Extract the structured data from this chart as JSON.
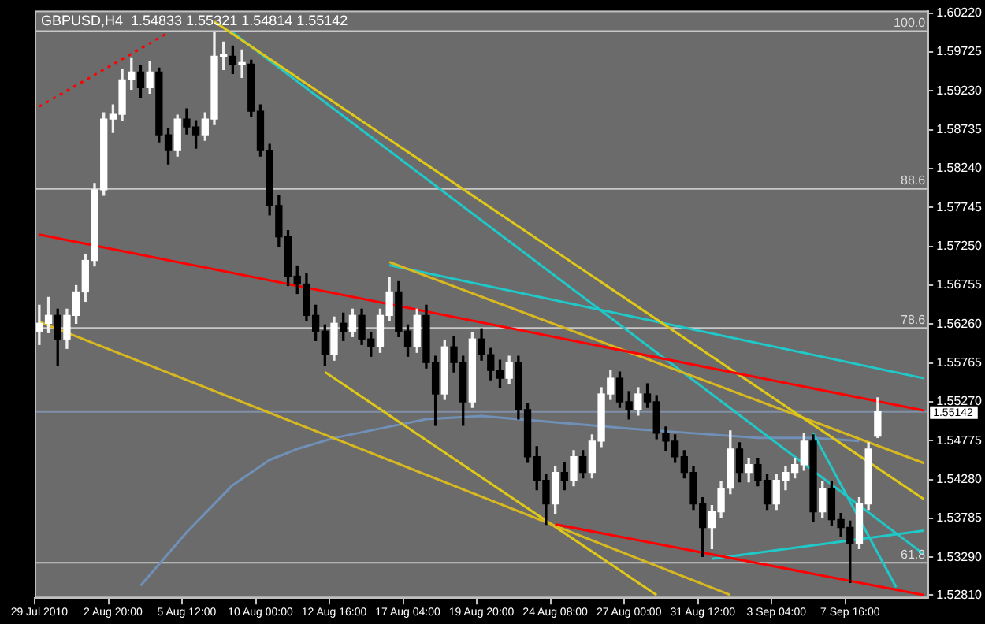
{
  "chart_data": {
    "type": "candlestick",
    "title": "GBPUSD,H4  1.54833 1.55321 1.54814 1.55142",
    "categories": [
      "29 Jul 2010",
      null,
      null,
      null,
      null,
      null,
      null,
      null,
      "2 Aug 20:00",
      null,
      null,
      null,
      null,
      null,
      null,
      null,
      "5 Aug 12:00",
      null,
      null,
      null,
      null,
      null,
      null,
      null,
      "10 Aug 00:00",
      null,
      null,
      null,
      null,
      null,
      null,
      null,
      "12 Aug 16:00",
      null,
      null,
      null,
      null,
      null,
      null,
      null,
      "17 Aug 04:00",
      null,
      null,
      null,
      null,
      null,
      null,
      null,
      "19 Aug 20:00",
      null,
      null,
      null,
      null,
      null,
      null,
      null,
      "24 Aug 08:00",
      null,
      null,
      null,
      null,
      null,
      null,
      null,
      "27 Aug 00:00",
      null,
      null,
      null,
      null,
      null,
      null,
      null,
      "31 Aug 12:00",
      null,
      null,
      null,
      null,
      null,
      null,
      null,
      "3 Sep 04:00",
      null,
      null,
      null,
      null,
      null,
      null,
      null,
      "7 Sep 16:00",
      null,
      null,
      null,
      null,
      null,
      null,
      null,
      null
    ],
    "ohlc": [
      [
        1.5617,
        1.565,
        1.56,
        1.5627
      ],
      [
        1.5627,
        1.566,
        1.5615,
        1.5637
      ],
      [
        1.5637,
        1.5645,
        1.5573,
        1.5607
      ],
      [
        1.5607,
        1.5645,
        1.5595,
        1.5637
      ],
      [
        1.5637,
        1.5675,
        1.5627,
        1.5667
      ],
      [
        1.5667,
        1.5715,
        1.5655,
        1.5707
      ],
      [
        1.5707,
        1.5805,
        1.57,
        1.5797
      ],
      [
        1.5797,
        1.5895,
        1.579,
        1.5887
      ],
      [
        1.5887,
        1.5905,
        1.587,
        1.5893
      ],
      [
        1.5893,
        1.595,
        1.5885,
        1.5937
      ],
      [
        1.5937,
        1.5965,
        1.5925,
        1.5947
      ],
      [
        1.5947,
        1.5955,
        1.5915,
        1.5927
      ],
      [
        1.5927,
        1.596,
        1.592,
        1.5947
      ],
      [
        1.5947,
        1.5952,
        1.5858,
        1.5867
      ],
      [
        1.5867,
        1.5875,
        1.583,
        1.5847
      ],
      [
        1.5847,
        1.5892,
        1.584,
        1.5887
      ],
      [
        1.5887,
        1.59,
        1.5868,
        1.5877
      ],
      [
        1.5877,
        1.5885,
        1.585,
        1.5867
      ],
      [
        1.5867,
        1.5895,
        1.586,
        1.5887
      ],
      [
        1.5887,
        1.5997,
        1.588,
        1.5967
      ],
      [
        1.5967,
        1.5985,
        1.595,
        1.5967
      ],
      [
        1.5967,
        1.598,
        1.5945,
        1.5957
      ],
      [
        1.5957,
        1.5975,
        1.594,
        1.5957
      ],
      [
        1.5957,
        1.5962,
        1.589,
        1.5897
      ],
      [
        1.5897,
        1.5905,
        1.584,
        1.5847
      ],
      [
        1.5847,
        1.5855,
        1.5765,
        1.5777
      ],
      [
        1.5777,
        1.579,
        1.5725,
        1.5737
      ],
      [
        1.5737,
        1.5745,
        1.5675,
        1.5687
      ],
      [
        1.5687,
        1.57,
        1.5665,
        1.5677
      ],
      [
        1.5677,
        1.569,
        1.563,
        1.5637
      ],
      [
        1.5637,
        1.565,
        1.5605,
        1.5617
      ],
      [
        1.5617,
        1.5625,
        1.5573,
        1.5587
      ],
      [
        1.5587,
        1.5635,
        1.558,
        1.5627
      ],
      [
        1.5627,
        1.564,
        1.5605,
        1.5617
      ],
      [
        1.5617,
        1.5645,
        1.561,
        1.5637
      ],
      [
        1.5637,
        1.5645,
        1.56,
        1.5607
      ],
      [
        1.5607,
        1.5615,
        1.5585,
        1.5597
      ],
      [
        1.5597,
        1.5645,
        1.559,
        1.5637
      ],
      [
        1.5637,
        1.5685,
        1.563,
        1.5667
      ],
      [
        1.5667,
        1.568,
        1.561,
        1.5617
      ],
      [
        1.5617,
        1.5625,
        1.5585,
        1.5597
      ],
      [
        1.5597,
        1.5645,
        1.559,
        1.5637
      ],
      [
        1.5637,
        1.565,
        1.557,
        1.5577
      ],
      [
        1.5577,
        1.5585,
        1.5497,
        1.5537
      ],
      [
        1.5537,
        1.5605,
        1.553,
        1.5597
      ],
      [
        1.5597,
        1.561,
        1.5565,
        1.5577
      ],
      [
        1.5577,
        1.5585,
        1.5497,
        1.5527
      ],
      [
        1.5527,
        1.5615,
        1.552,
        1.5607
      ],
      [
        1.5607,
        1.562,
        1.558,
        1.5587
      ],
      [
        1.5587,
        1.5595,
        1.5555,
        1.5567
      ],
      [
        1.5567,
        1.558,
        1.5545,
        1.5557
      ],
      [
        1.5557,
        1.5585,
        1.555,
        1.5577
      ],
      [
        1.5577,
        1.5585,
        1.5505,
        1.5517
      ],
      [
        1.5517,
        1.5525,
        1.545,
        1.5457
      ],
      [
        1.5457,
        1.547,
        1.5415,
        1.5427
      ],
      [
        1.5427,
        1.5435,
        1.5371,
        1.5397
      ],
      [
        1.5397,
        1.5445,
        1.5385,
        1.5437
      ],
      [
        1.5437,
        1.545,
        1.5415,
        1.5427
      ],
      [
        1.5427,
        1.5465,
        1.542,
        1.5457
      ],
      [
        1.5457,
        1.5465,
        1.543,
        1.5437
      ],
      [
        1.5437,
        1.5485,
        1.543,
        1.5477
      ],
      [
        1.5477,
        1.5545,
        1.547,
        1.5537
      ],
      [
        1.5537,
        1.5567,
        1.553,
        1.5557
      ],
      [
        1.5557,
        1.5565,
        1.552,
        1.5527
      ],
      [
        1.5527,
        1.554,
        1.5505,
        1.5517
      ],
      [
        1.5517,
        1.5545,
        1.551,
        1.5537
      ],
      [
        1.5537,
        1.555,
        1.552,
        1.5527
      ],
      [
        1.5527,
        1.5535,
        1.548,
        1.5487
      ],
      [
        1.5487,
        1.5495,
        1.5465,
        1.5477
      ],
      [
        1.5477,
        1.5485,
        1.545,
        1.5457
      ],
      [
        1.5457,
        1.5465,
        1.543,
        1.5437
      ],
      [
        1.5437,
        1.5445,
        1.539,
        1.5397
      ],
      [
        1.5397,
        1.5405,
        1.533,
        1.5367
      ],
      [
        1.5367,
        1.5395,
        1.534,
        1.5387
      ],
      [
        1.5387,
        1.5425,
        1.538,
        1.5417
      ],
      [
        1.5417,
        1.549,
        1.541,
        1.5467
      ],
      [
        1.5467,
        1.5475,
        1.5425,
        1.5437
      ],
      [
        1.5437,
        1.5455,
        1.5425,
        1.5447
      ],
      [
        1.5447,
        1.5455,
        1.542,
        1.5427
      ],
      [
        1.5427,
        1.5435,
        1.539,
        1.5397
      ],
      [
        1.5397,
        1.5435,
        1.539,
        1.5427
      ],
      [
        1.5427,
        1.5445,
        1.5415,
        1.5437
      ],
      [
        1.5437,
        1.5455,
        1.543,
        1.5447
      ],
      [
        1.5447,
        1.5487,
        1.544,
        1.5477
      ],
      [
        1.5477,
        1.5485,
        1.5375,
        1.5387
      ],
      [
        1.5387,
        1.5425,
        1.538,
        1.5417
      ],
      [
        1.5417,
        1.5425,
        1.537,
        1.5377
      ],
      [
        1.5377,
        1.5385,
        1.5355,
        1.5367
      ],
      [
        1.5367,
        1.5375,
        1.5297,
        1.5347
      ],
      [
        1.5347,
        1.5405,
        1.534,
        1.5397
      ],
      [
        1.5397,
        1.5475,
        1.539,
        1.5467
      ],
      [
        1.54833,
        1.55321,
        1.54814,
        1.55142
      ],
      null,
      null,
      null,
      null,
      null
    ],
    "series": [
      {
        "type": "line",
        "color": "#ff0000",
        "values": [
          1.574,
          null,
          null,
          null,
          null,
          null,
          null,
          null,
          null,
          null,
          null,
          null,
          null,
          null,
          null,
          null,
          null,
          null,
          null,
          null,
          null,
          null,
          null,
          null,
          null,
          null,
          null,
          null,
          null,
          null,
          null,
          null,
          null,
          null,
          null,
          null,
          null,
          null,
          null,
          null,
          null,
          null,
          null,
          null,
          null,
          null,
          null,
          null,
          null,
          null,
          null,
          null,
          null,
          null,
          null,
          null,
          null,
          null,
          null,
          null,
          null,
          null,
          null,
          null,
          null,
          null,
          null,
          null,
          null,
          null,
          null,
          null,
          null,
          null,
          null,
          null,
          null,
          null,
          null,
          null,
          null,
          null,
          null,
          null,
          null,
          null,
          null,
          null,
          null,
          null,
          null,
          null,
          null,
          null,
          null,
          null,
          1.5516
        ]
      },
      {
        "type": "line",
        "color": "#ff0000",
        "values": [
          null,
          null,
          null,
          null,
          null,
          null,
          null,
          null,
          null,
          null,
          null,
          null,
          null,
          null,
          null,
          null,
          null,
          null,
          null,
          null,
          null,
          null,
          null,
          null,
          null,
          null,
          null,
          null,
          null,
          null,
          null,
          null,
          null,
          null,
          null,
          null,
          null,
          null,
          null,
          null,
          null,
          null,
          null,
          null,
          null,
          null,
          null,
          null,
          null,
          null,
          null,
          null,
          null,
          null,
          null,
          null,
          1.5371,
          null,
          null,
          null,
          null,
          null,
          null,
          null,
          null,
          null,
          null,
          null,
          null,
          null,
          null,
          null,
          null,
          null,
          null,
          null,
          null,
          null,
          null,
          null,
          null,
          null,
          null,
          null,
          null,
          null,
          null,
          null,
          null,
          null,
          null,
          null,
          null,
          null,
          null,
          null,
          1.5281
        ]
      },
      {
        "type": "line",
        "color": "#ff0000",
        "line_style": "dotted",
        "values": [
          1.5903,
          null,
          null,
          null,
          null,
          null,
          null,
          null,
          null,
          null,
          null,
          null,
          null,
          null,
          1.5997,
          null,
          null,
          null,
          null,
          null,
          null,
          null,
          null,
          null,
          null,
          null,
          null,
          null,
          null,
          null,
          null,
          null,
          null,
          null,
          null,
          null,
          null,
          null,
          null,
          null,
          null,
          null,
          null,
          null,
          null,
          null,
          null,
          null,
          null,
          null,
          null,
          null,
          null,
          null,
          null,
          null,
          null,
          null,
          null,
          null,
          null,
          null,
          null,
          null,
          null,
          null,
          null,
          null,
          null,
          null,
          null,
          null,
          null,
          null,
          null,
          null,
          null,
          null,
          null,
          null,
          null,
          null,
          null,
          null,
          null,
          null,
          null,
          null,
          null,
          null,
          null,
          null,
          null,
          null,
          null,
          null,
          null
        ]
      },
      {
        "type": "line",
        "color": "#e0c818",
        "values": [
          null,
          null,
          null,
          null,
          null,
          null,
          null,
          null,
          null,
          null,
          null,
          null,
          null,
          null,
          null,
          null,
          null,
          null,
          null,
          1.6011,
          null,
          null,
          null,
          null,
          null,
          null,
          null,
          null,
          null,
          null,
          null,
          null,
          null,
          null,
          null,
          null,
          null,
          null,
          null,
          null,
          null,
          null,
          null,
          null,
          null,
          null,
          null,
          null,
          null,
          null,
          null,
          null,
          null,
          null,
          null,
          null,
          null,
          null,
          null,
          null,
          null,
          null,
          null,
          null,
          null,
          null,
          null,
          null,
          null,
          null,
          null,
          null,
          null,
          null,
          null,
          null,
          null,
          null,
          null,
          null,
          null,
          null,
          null,
          null,
          null,
          null,
          null,
          null,
          null,
          null,
          null,
          null,
          null,
          null,
          null,
          null,
          1.5403
        ]
      },
      {
        "type": "line",
        "color": "#d8b820",
        "values": [
          1.5629,
          null,
          null,
          null,
          null,
          null,
          null,
          null,
          null,
          null,
          null,
          null,
          null,
          null,
          null,
          null,
          null,
          null,
          null,
          null,
          null,
          null,
          null,
          null,
          null,
          null,
          null,
          null,
          null,
          null,
          null,
          null,
          null,
          null,
          null,
          null,
          null,
          null,
          null,
          null,
          null,
          null,
          null,
          null,
          null,
          null,
          null,
          null,
          null,
          null,
          null,
          null,
          null,
          null,
          null,
          null,
          null,
          null,
          null,
          null,
          null,
          null,
          null,
          null,
          null,
          null,
          null,
          null,
          null,
          null,
          null,
          null,
          null,
          null,
          null,
          1.5281,
          null,
          null,
          null,
          null,
          null,
          null,
          null,
          null,
          null,
          null,
          null,
          null,
          null,
          null,
          null,
          null,
          null,
          null,
          null,
          null,
          null
        ]
      },
      {
        "type": "line",
        "color": "#e0c818",
        "values": [
          null,
          null,
          null,
          null,
          null,
          null,
          null,
          null,
          null,
          null,
          null,
          null,
          null,
          null,
          null,
          null,
          null,
          null,
          null,
          null,
          null,
          null,
          null,
          null,
          null,
          null,
          null,
          null,
          null,
          null,
          null,
          1.5565,
          null,
          null,
          null,
          null,
          null,
          null,
          null,
          null,
          null,
          null,
          null,
          null,
          null,
          null,
          null,
          null,
          null,
          null,
          null,
          null,
          null,
          null,
          null,
          null,
          null,
          null,
          null,
          null,
          null,
          null,
          null,
          null,
          null,
          null,
          null,
          1.5281,
          null,
          null,
          null,
          null,
          null,
          null,
          null,
          null,
          null,
          null,
          null,
          null,
          null,
          null,
          null,
          null,
          null,
          null,
          null,
          null,
          null,
          null,
          null,
          null,
          null,
          null,
          null,
          null,
          null
        ]
      },
      {
        "type": "line",
        "color": "#d8b820",
        "values": [
          null,
          null,
          null,
          null,
          null,
          null,
          null,
          null,
          null,
          null,
          null,
          null,
          null,
          null,
          null,
          null,
          null,
          null,
          null,
          null,
          null,
          null,
          null,
          null,
          null,
          null,
          null,
          null,
          null,
          null,
          null,
          null,
          null,
          null,
          null,
          null,
          null,
          null,
          1.5705,
          null,
          null,
          null,
          null,
          null,
          null,
          null,
          null,
          null,
          null,
          null,
          null,
          null,
          null,
          null,
          null,
          null,
          null,
          null,
          null,
          null,
          null,
          null,
          null,
          null,
          null,
          null,
          null,
          null,
          null,
          null,
          null,
          null,
          null,
          null,
          null,
          null,
          null,
          null,
          null,
          null,
          null,
          null,
          null,
          null,
          null,
          null,
          null,
          null,
          null,
          null,
          null,
          null,
          null,
          null,
          null,
          null,
          1.5449
        ]
      },
      {
        "type": "line",
        "color": "#20c8c8",
        "values": [
          null,
          null,
          null,
          null,
          null,
          null,
          null,
          null,
          null,
          null,
          null,
          null,
          null,
          null,
          null,
          null,
          null,
          null,
          null,
          null,
          null,
          1.5997,
          null,
          null,
          null,
          null,
          null,
          null,
          null,
          null,
          null,
          null,
          null,
          null,
          null,
          null,
          null,
          null,
          null,
          null,
          null,
          null,
          null,
          null,
          null,
          null,
          null,
          null,
          null,
          null,
          null,
          null,
          null,
          null,
          null,
          null,
          null,
          null,
          null,
          null,
          null,
          null,
          null,
          null,
          null,
          null,
          null,
          null,
          null,
          null,
          null,
          null,
          null,
          null,
          null,
          null,
          null,
          null,
          null,
          null,
          null,
          null,
          null,
          null,
          null,
          null,
          null,
          null,
          null,
          null,
          null,
          null,
          null,
          null,
          null,
          null,
          1.5333
        ]
      },
      {
        "type": "line",
        "color": "#20c8c8",
        "values": [
          null,
          null,
          null,
          null,
          null,
          null,
          null,
          null,
          null,
          null,
          null,
          null,
          null,
          null,
          null,
          null,
          null,
          null,
          null,
          null,
          null,
          null,
          null,
          null,
          null,
          null,
          null,
          null,
          null,
          null,
          null,
          null,
          null,
          null,
          null,
          null,
          null,
          null,
          null,
          null,
          null,
          null,
          null,
          null,
          null,
          null,
          null,
          null,
          null,
          null,
          null,
          null,
          null,
          null,
          null,
          null,
          null,
          null,
          null,
          null,
          null,
          null,
          null,
          null,
          null,
          null,
          null,
          null,
          null,
          null,
          null,
          null,
          null,
          null,
          null,
          null,
          null,
          null,
          null,
          null,
          null,
          null,
          null,
          null,
          1.5487,
          null,
          null,
          null,
          null,
          null,
          null,
          null,
          null,
          1.5291,
          null,
          null,
          null
        ]
      },
      {
        "type": "line",
        "color": "#20c8c8",
        "values": [
          null,
          null,
          null,
          null,
          null,
          null,
          null,
          null,
          null,
          null,
          null,
          null,
          null,
          null,
          null,
          null,
          null,
          null,
          null,
          null,
          null,
          null,
          null,
          null,
          null,
          null,
          null,
          null,
          null,
          null,
          null,
          null,
          null,
          null,
          null,
          null,
          null,
          null,
          1.5701,
          null,
          null,
          null,
          null,
          null,
          null,
          null,
          null,
          null,
          null,
          null,
          null,
          null,
          null,
          null,
          null,
          null,
          null,
          null,
          null,
          null,
          null,
          null,
          null,
          null,
          null,
          null,
          null,
          null,
          null,
          null,
          null,
          null,
          null,
          null,
          null,
          null,
          null,
          null,
          null,
          null,
          null,
          null,
          null,
          null,
          null,
          null,
          null,
          null,
          null,
          null,
          null,
          null,
          null,
          null,
          null,
          null,
          1.5557
        ]
      },
      {
        "type": "line",
        "color": "#20c8c8",
        "values": [
          null,
          null,
          null,
          null,
          null,
          null,
          null,
          null,
          null,
          null,
          null,
          null,
          null,
          null,
          null,
          null,
          null,
          null,
          null,
          null,
          null,
          null,
          null,
          null,
          null,
          null,
          null,
          null,
          null,
          null,
          null,
          null,
          null,
          null,
          null,
          null,
          null,
          null,
          null,
          null,
          null,
          null,
          null,
          null,
          null,
          null,
          null,
          null,
          null,
          null,
          null,
          null,
          null,
          null,
          null,
          null,
          null,
          null,
          null,
          null,
          null,
          null,
          null,
          null,
          null,
          null,
          null,
          null,
          null,
          null,
          null,
          null,
          null,
          1.5327,
          null,
          null,
          null,
          null,
          null,
          null,
          null,
          null,
          null,
          null,
          null,
          null,
          null,
          null,
          null,
          null,
          null,
          null,
          null,
          null,
          null,
          null,
          1.5363
        ]
      },
      {
        "type": "line",
        "color": "#7090b8",
        "values": [
          null,
          null,
          null,
          null,
          null,
          null,
          null,
          null,
          null,
          null,
          null,
          1.5293,
          null,
          null,
          null,
          null,
          1.5361,
          null,
          null,
          null,
          null,
          1.5421,
          null,
          null,
          null,
          1.5453,
          null,
          null,
          1.5467,
          null,
          null,
          null,
          1.5481,
          null,
          null,
          null,
          null,
          1.5493,
          null,
          null,
          null,
          null,
          1.5505,
          null,
          null,
          null,
          null,
          null,
          1.5509,
          null,
          null,
          null,
          null,
          null,
          null,
          null,
          1.5501,
          null,
          null,
          null,
          null,
          null,
          null,
          null,
          1.5493,
          null,
          null,
          null,
          null,
          null,
          null,
          1.5487,
          null,
          null,
          null,
          null,
          null,
          null,
          1.5481,
          null,
          null,
          null,
          null,
          null,
          1.5481,
          null,
          null,
          null,
          null,
          1.5477,
          null,
          null,
          null,
          null,
          null,
          null,
          null
        ]
      }
    ],
    "marker": "none",
    "ylim": [
      1.5277,
      1.6025
    ],
    "yticks": [
      {
        "value": 1.6022,
        "label": "1.60220"
      },
      {
        "value": 1.59725,
        "label": "1.59725"
      },
      {
        "value": 1.5923,
        "label": "1.59230"
      },
      {
        "value": 1.58735,
        "label": "1.58735"
      },
      {
        "value": 1.5824,
        "label": "1.58240"
      },
      {
        "value": 1.57745,
        "label": "1.57745"
      },
      {
        "value": 1.5725,
        "label": "1.57250"
      },
      {
        "value": 1.56755,
        "label": "1.56755"
      },
      {
        "value": 1.5626,
        "label": "1.56260"
      },
      {
        "value": 1.55765,
        "label": "1.55765"
      },
      {
        "value": 1.5527,
        "label": "1.55270"
      },
      {
        "value": 1.54775,
        "label": "1.54775"
      },
      {
        "value": 1.5428,
        "label": "1.54280"
      },
      {
        "value": 1.53785,
        "label": "1.53785"
      },
      {
        "value": 1.5329,
        "label": "1.53290"
      },
      {
        "value": 1.5281,
        "label": "1.52810"
      }
    ],
    "ref_lines": [
      {
        "axis": "y",
        "value": 1.5999,
        "color": "#c8c8c8"
      },
      {
        "axis": "y",
        "value": 1.5798,
        "color": "#c8c8c8"
      },
      {
        "axis": "y",
        "value": 1.5621,
        "color": "#c8c8c8"
      },
      {
        "axis": "y",
        "value": 1.5322,
        "color": "#c8c8c8"
      },
      {
        "axis": "y",
        "value": 1.55142,
        "label": "1.55142",
        "color": "#8090a8"
      }
    ],
    "annotations": [
      {
        "text": "100.0",
        "y": 1.5999
      },
      {
        "text": "88.6",
        "y": 1.5798
      },
      {
        "text": "78.6",
        "y": 1.5621
      },
      {
        "text": "61.8",
        "y": 1.5322
      }
    ]
  }
}
